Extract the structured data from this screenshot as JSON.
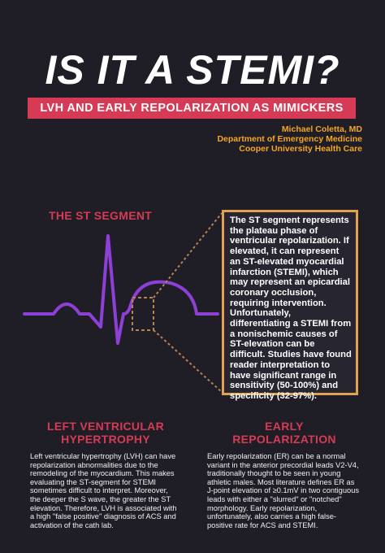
{
  "title": "IS IT A STEMI?",
  "subtitle": "LVH AND EARLY REPOLARIZATION AS MIMICKERS",
  "author": {
    "name": "Michael Coletta, MD",
    "department": "Department of Emergency Medicine",
    "institution": "Cooper University Health Care"
  },
  "st_segment": {
    "heading": "THE ST SEGMENT",
    "description": "The ST segment represents the plateau phase of ventricular repolarization. If elevated, it can represent an ST-elevated myocardial infarction (STEMI), which may represent an epicardial coronary occlusion, requiring intervention. Unfortunately, differentiating a STEMI from a nonischemic causes of ST-elevation can be difficult. Studies have found reader interpretation to have significant range in sensitivity (50-100%) and specificity (32-97%)."
  },
  "lvh": {
    "heading_line1": "LEFT VENTRICULAR",
    "heading_line2": "HYPERTROPHY",
    "body": "Left ventricular hypertrophy (LVH) can have repolarization abnormalities due to the remodeling of the myocardium. This makes evaluating the ST-segment for STEMI sometimes difficult to interpret. Moreover, the deeper the S wave, the greater the ST elevation. Therefore, LVH is associated with a high \"false positive\" diagnosis of ACS and activation of the cath lab."
  },
  "early_repolarization": {
    "heading_line1": "EARLY",
    "heading_line2": "REPOLARIZATION",
    "body": "Early repolarization (ER) can be a normal variant in the anterior precordial leads V2-V4, traditionally thought to be seen in young athletic males. Most literature defines ER as J-point elevation of ≥0.1mV in two contiguous leads with either a \"slurred\" or \"notched\" morphology. Early repolarization, unfortunately, also carries a high false-positive rate for ACS and STEMI."
  },
  "colors": {
    "background": "#1f1e26",
    "accent_red": "#d63a54",
    "accent_orange": "#f5a623",
    "ecg_purple": "#8e3fd6",
    "box_border": "#e3a24f"
  }
}
